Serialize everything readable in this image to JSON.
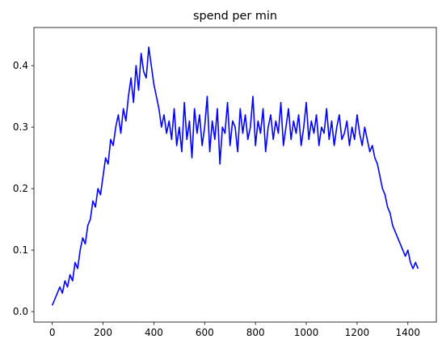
{
  "chart_data": {
    "type": "line",
    "title": "spend per min",
    "xlabel": "",
    "ylabel": "",
    "xlim": [
      -72,
      1512
    ],
    "ylim": [
      -0.017,
      0.462
    ],
    "x_ticks": [
      0,
      200,
      400,
      600,
      800,
      1000,
      1200,
      1400
    ],
    "x_tick_labels": [
      "0",
      "200",
      "400",
      "600",
      "800",
      "1000",
      "1200",
      "1400"
    ],
    "y_ticks": [
      0.0,
      0.1,
      0.2,
      0.3,
      0.4
    ],
    "y_tick_labels": [
      "0.0",
      "0.1",
      "0.2",
      "0.3",
      "0.4"
    ],
    "grid": false,
    "line_color": "#0000ff",
    "series": [
      {
        "x": [
          0,
          10,
          20,
          30,
          40,
          50,
          60,
          70,
          80,
          90,
          100,
          110,
          120,
          130,
          140,
          150,
          160,
          170,
          180,
          190,
          200,
          210,
          220,
          230,
          240,
          250,
          260,
          270,
          280,
          290,
          300,
          310,
          320,
          330,
          340,
          350,
          360,
          370,
          380,
          390,
          400,
          410,
          420,
          430,
          440,
          450,
          460,
          470,
          480,
          490,
          500,
          510,
          520,
          530,
          540,
          550,
          560,
          570,
          580,
          590,
          600,
          610,
          620,
          630,
          640,
          650,
          660,
          670,
          680,
          690,
          700,
          710,
          720,
          730,
          740,
          750,
          760,
          770,
          780,
          790,
          800,
          810,
          820,
          830,
          840,
          850,
          860,
          870,
          880,
          890,
          900,
          910,
          920,
          930,
          940,
          950,
          960,
          970,
          980,
          990,
          1000,
          1010,
          1020,
          1030,
          1040,
          1050,
          1060,
          1070,
          1080,
          1090,
          1100,
          1110,
          1120,
          1130,
          1140,
          1150,
          1160,
          1170,
          1180,
          1190,
          1200,
          1210,
          1220,
          1230,
          1240,
          1250,
          1260,
          1270,
          1280,
          1290,
          1300,
          1310,
          1320,
          1330,
          1340,
          1350,
          1360,
          1370,
          1380,
          1390,
          1400,
          1410,
          1420,
          1430,
          1440
        ],
        "y": [
          0.01,
          0.02,
          0.03,
          0.04,
          0.03,
          0.05,
          0.04,
          0.06,
          0.05,
          0.08,
          0.07,
          0.1,
          0.12,
          0.11,
          0.14,
          0.15,
          0.18,
          0.17,
          0.2,
          0.19,
          0.22,
          0.25,
          0.24,
          0.28,
          0.27,
          0.3,
          0.32,
          0.29,
          0.33,
          0.31,
          0.35,
          0.38,
          0.34,
          0.4,
          0.36,
          0.42,
          0.39,
          0.38,
          0.43,
          0.4,
          0.37,
          0.35,
          0.33,
          0.3,
          0.32,
          0.29,
          0.31,
          0.28,
          0.33,
          0.27,
          0.3,
          0.26,
          0.34,
          0.28,
          0.31,
          0.25,
          0.33,
          0.29,
          0.32,
          0.27,
          0.3,
          0.35,
          0.26,
          0.31,
          0.28,
          0.33,
          0.24,
          0.3,
          0.29,
          0.34,
          0.27,
          0.31,
          0.3,
          0.26,
          0.33,
          0.29,
          0.32,
          0.28,
          0.3,
          0.35,
          0.27,
          0.31,
          0.29,
          0.33,
          0.26,
          0.3,
          0.32,
          0.28,
          0.31,
          0.29,
          0.34,
          0.27,
          0.3,
          0.33,
          0.28,
          0.31,
          0.29,
          0.32,
          0.27,
          0.3,
          0.34,
          0.28,
          0.31,
          0.29,
          0.32,
          0.27,
          0.3,
          0.29,
          0.33,
          0.28,
          0.31,
          0.27,
          0.3,
          0.32,
          0.28,
          0.29,
          0.31,
          0.27,
          0.3,
          0.28,
          0.32,
          0.29,
          0.27,
          0.3,
          0.28,
          0.26,
          0.27,
          0.25,
          0.24,
          0.22,
          0.2,
          0.19,
          0.17,
          0.16,
          0.14,
          0.13,
          0.12,
          0.11,
          0.1,
          0.09,
          0.1,
          0.08,
          0.07,
          0.08,
          0.07
        ]
      },
      {
        "name_hidden": "",
        "x": [],
        "y": []
      }
    ]
  }
}
